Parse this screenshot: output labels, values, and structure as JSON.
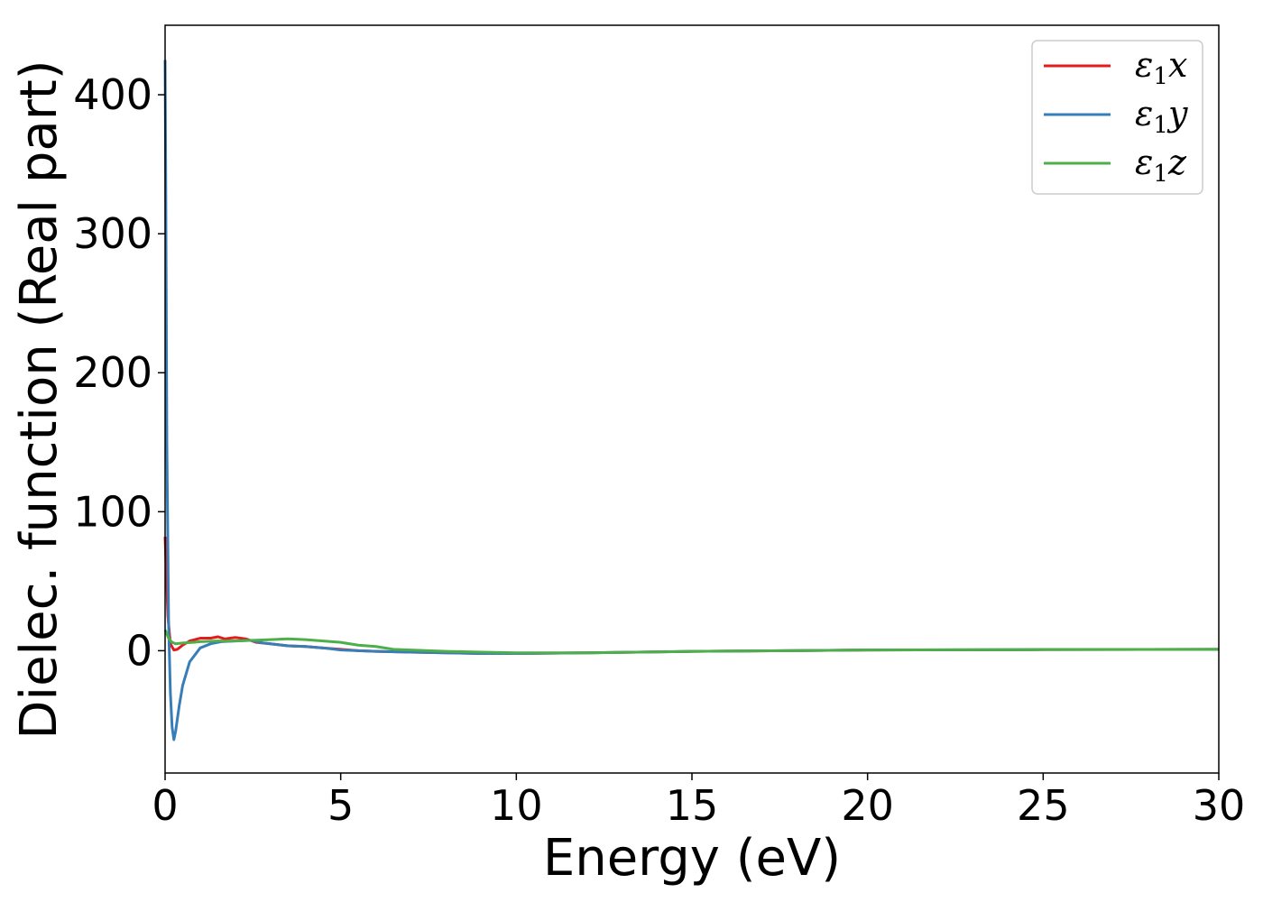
{
  "chart_data": {
    "type": "line",
    "xlabel": "Energy (eV)",
    "ylabel": "Dielec. function (Real part)",
    "xlim": [
      0,
      30
    ],
    "ylim": [
      -88,
      450
    ],
    "xticks": [
      0,
      5,
      10,
      15,
      20,
      25,
      30
    ],
    "xtick_labels": [
      "0",
      "5",
      "10",
      "15",
      "20",
      "25",
      "30"
    ],
    "yticks": [
      0,
      100,
      200,
      300,
      400
    ],
    "ytick_labels": [
      "0",
      "100",
      "200",
      "300",
      "400"
    ],
    "grid": false,
    "legend_position": "top-right",
    "series": [
      {
        "name": "ε1x",
        "legend_symbol": "ε",
        "legend_sub": "1",
        "legend_var": "x",
        "color": "#e41a1c",
        "x": [
          0.0,
          0.03,
          0.08,
          0.15,
          0.25,
          0.35,
          0.5,
          0.7,
          1.0,
          1.3,
          1.5,
          1.7,
          2.0,
          2.3,
          2.6,
          3.0,
          3.5,
          4.0,
          4.5,
          5.0,
          5.5,
          6.0,
          7.0,
          8.0,
          9.0,
          10.0,
          12.0,
          15.0,
          20.0,
          25.0,
          30.0
        ],
        "y": [
          82.0,
          60.0,
          25.0,
          5.0,
          0.5,
          1.0,
          4.0,
          7.0,
          9.0,
          9.0,
          10.0,
          8.5,
          9.5,
          8.5,
          6.0,
          5.0,
          3.5,
          3.0,
          2.0,
          1.0,
          0.0,
          -0.5,
          -1.0,
          -1.5,
          -2.0,
          -2.0,
          -1.5,
          -0.5,
          0.5,
          0.8,
          1.0
        ]
      },
      {
        "name": "ε1y",
        "legend_symbol": "ε",
        "legend_sub": "1",
        "legend_var": "y",
        "color": "#377eb8",
        "x": [
          0.0,
          0.02,
          0.05,
          0.1,
          0.15,
          0.2,
          0.25,
          0.3,
          0.4,
          0.5,
          0.7,
          1.0,
          1.3,
          1.6,
          2.0,
          2.4,
          2.8,
          3.0,
          3.5,
          4.0,
          4.5,
          5.0,
          5.5,
          6.0,
          7.0,
          8.0,
          9.0,
          10.0,
          12.0,
          15.0,
          20.0,
          25.0,
          30.0
        ],
        "y": [
          425.0,
          330.0,
          150.0,
          20.0,
          -30.0,
          -55.0,
          -64.0,
          -58.0,
          -40.0,
          -25.0,
          -8.0,
          2.0,
          5.0,
          6.5,
          7.0,
          7.5,
          5.5,
          5.0,
          3.5,
          3.0,
          2.0,
          0.5,
          0.0,
          -0.5,
          -1.0,
          -1.5,
          -2.0,
          -2.0,
          -1.5,
          -0.5,
          0.5,
          0.8,
          1.0
        ]
      },
      {
        "name": "ε1z",
        "legend_symbol": "ε",
        "legend_sub": "1",
        "legend_var": "z",
        "color": "#4daf4a",
        "x": [
          0.0,
          0.05,
          0.1,
          0.2,
          0.3,
          0.5,
          0.8,
          1.0,
          1.5,
          2.0,
          2.5,
          3.0,
          3.5,
          4.0,
          4.5,
          5.0,
          5.5,
          6.0,
          6.5,
          7.0,
          7.5,
          8.0,
          9.0,
          10.0,
          12.0,
          15.0,
          20.0,
          25.0,
          30.0
        ],
        "y": [
          15.0,
          12.0,
          9.0,
          6.0,
          5.0,
          5.5,
          6.0,
          6.5,
          7.0,
          7.0,
          7.5,
          8.0,
          8.5,
          8.0,
          7.0,
          6.0,
          4.0,
          3.0,
          1.0,
          0.5,
          0.0,
          -0.5,
          -1.0,
          -1.5,
          -1.5,
          -0.5,
          0.5,
          0.8,
          1.0
        ]
      }
    ]
  }
}
